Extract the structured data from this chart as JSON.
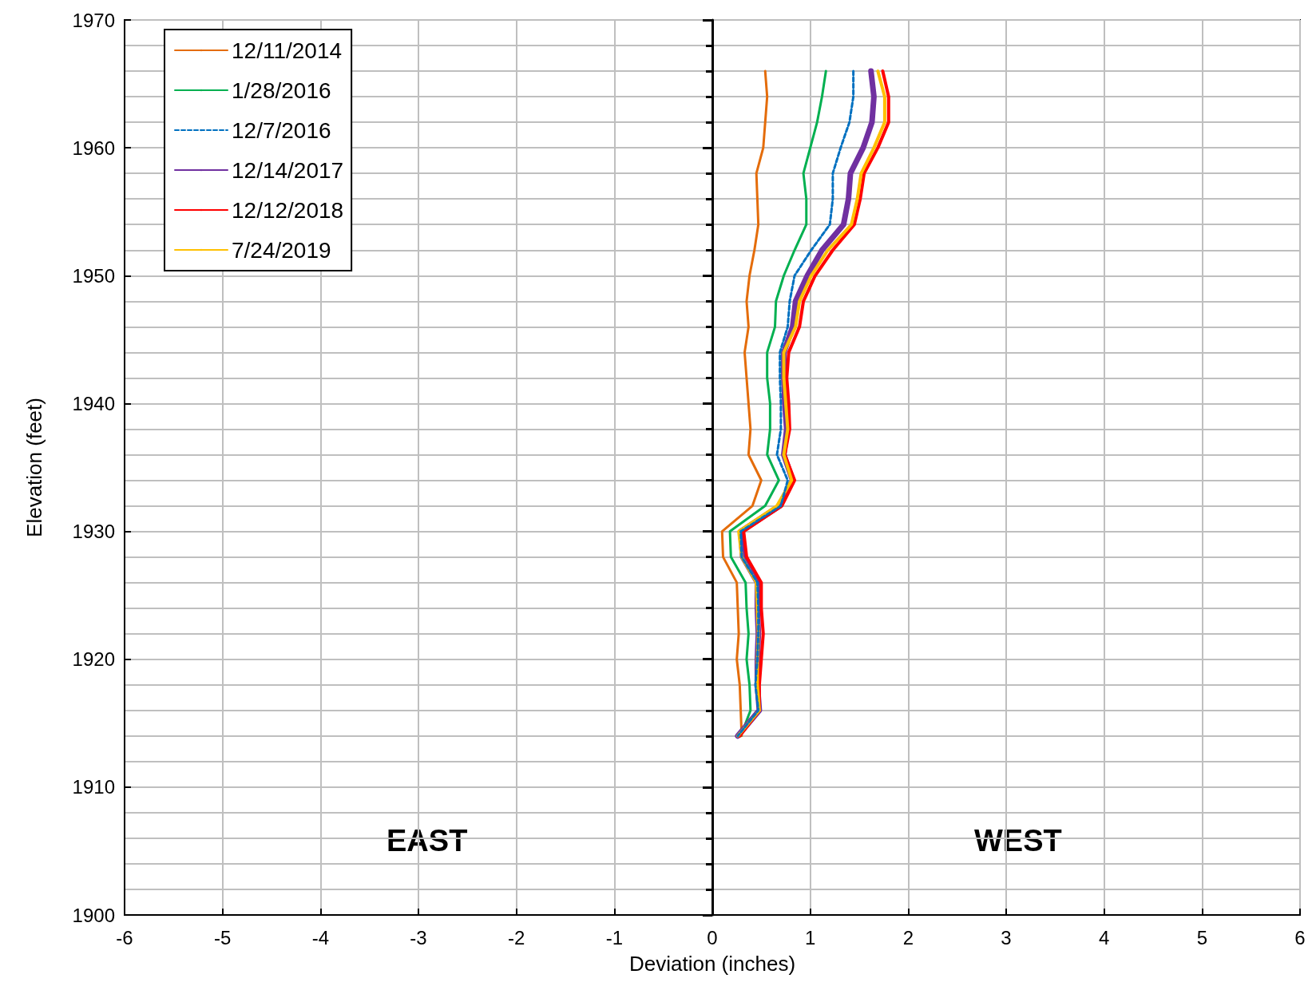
{
  "chart_data": {
    "type": "line",
    "xlabel": "Deviation (inches)",
    "ylabel": "Elevation (feet)",
    "xlim": [
      -6,
      6
    ],
    "xticks": [
      -6,
      -5,
      -4,
      -3,
      -2,
      -1,
      0,
      1,
      2,
      3,
      4,
      5,
      6
    ],
    "ylim": [
      1900,
      1970
    ],
    "yticks": [
      1900,
      1910,
      1920,
      1930,
      1940,
      1950,
      1960,
      1970
    ],
    "grid": true,
    "legend": "top left",
    "marker": "none",
    "annotations": [
      "EAST",
      "WEST"
    ],
    "series": [
      {
        "name": "12/11/2014",
        "color": "#e46c0a",
        "line_style": "solid",
        "x": [
          0.54,
          0.56,
          0.54,
          0.52,
          0.45,
          0.46,
          0.47,
          0.43,
          0.38,
          0.35,
          0.37,
          0.33,
          0.35,
          0.37,
          0.39,
          0.37,
          0.5,
          0.41,
          0.1,
          0.11,
          0.25,
          0.26,
          0.27,
          0.25,
          0.28,
          0.29,
          0.3
        ],
        "values": [
          1966,
          1964,
          1962,
          1960,
          1958,
          1956,
          1954,
          1952,
          1950,
          1948,
          1946,
          1944,
          1942,
          1940,
          1938,
          1936,
          1934,
          1932,
          1930,
          1928,
          1926,
          1924,
          1922,
          1920,
          1918,
          1916,
          1914
        ]
      },
      {
        "name": "1/28/2016",
        "color": "#00b050",
        "line_style": "solid",
        "x": [
          1.16,
          1.12,
          1.07,
          1.0,
          0.93,
          0.96,
          0.96,
          0.84,
          0.73,
          0.65,
          0.64,
          0.56,
          0.56,
          0.59,
          0.59,
          0.56,
          0.68,
          0.54,
          0.18,
          0.19,
          0.34,
          0.35,
          0.37,
          0.35,
          0.38,
          0.39,
          0.29
        ],
        "values": [
          1966,
          1964,
          1962,
          1960,
          1958,
          1956,
          1954,
          1952,
          1950,
          1948,
          1946,
          1944,
          1942,
          1940,
          1938,
          1936,
          1934,
          1932,
          1930,
          1928,
          1926,
          1924,
          1922,
          1920,
          1918,
          1916,
          1914
        ]
      },
      {
        "name": "12/7/2016",
        "color": "#0070c0",
        "line_style": "dashed",
        "x": [
          1.44,
          1.44,
          1.4,
          1.31,
          1.23,
          1.23,
          1.2,
          1.01,
          0.84,
          0.79,
          0.77,
          0.69,
          0.69,
          0.7,
          0.7,
          0.66,
          0.77,
          0.7,
          0.29,
          0.3,
          0.46,
          0.47,
          0.47,
          0.46,
          0.44,
          0.47,
          0.26
        ],
        "values": [
          1966,
          1964,
          1962,
          1960,
          1958,
          1956,
          1954,
          1952,
          1950,
          1948,
          1946,
          1944,
          1942,
          1940,
          1938,
          1936,
          1934,
          1932,
          1930,
          1928,
          1926,
          1924,
          1922,
          1920,
          1918,
          1916,
          1914
        ]
      },
      {
        "name": "12/14/2017",
        "color": "#7030a0",
        "line_style": "solid",
        "x": [
          1.62,
          1.65,
          1.63,
          1.54,
          1.41,
          1.39,
          1.34,
          1.12,
          0.97,
          0.85,
          0.82,
          0.73,
          0.73,
          0.74,
          0.76,
          0.73,
          0.82,
          0.69,
          0.29,
          0.31,
          0.46,
          0.46,
          0.47,
          0.46,
          0.46,
          0.48,
          0.26
        ],
        "values": [
          1966,
          1964,
          1962,
          1960,
          1958,
          1956,
          1954,
          1952,
          1950,
          1948,
          1946,
          1944,
          1942,
          1940,
          1938,
          1936,
          1934,
          1932,
          1930,
          1928,
          1926,
          1924,
          1922,
          1920,
          1918,
          1916,
          1914
        ]
      },
      {
        "name": "12/12/2018",
        "color": "#ff0000",
        "line_style": "solid",
        "x": [
          1.74,
          1.8,
          1.8,
          1.69,
          1.55,
          1.51,
          1.45,
          1.23,
          1.05,
          0.93,
          0.89,
          0.78,
          0.76,
          0.78,
          0.79,
          0.74,
          0.84,
          0.71,
          0.32,
          0.35,
          0.5,
          0.5,
          0.52,
          0.5,
          0.48,
          0.48,
          0.28
        ],
        "values": [
          1966,
          1964,
          1962,
          1960,
          1958,
          1956,
          1954,
          1952,
          1950,
          1948,
          1946,
          1944,
          1942,
          1940,
          1938,
          1936,
          1934,
          1932,
          1930,
          1928,
          1926,
          1924,
          1922,
          1920,
          1918,
          1916,
          1914
        ]
      },
      {
        "name": "7/24/2019",
        "color": "#ffc000",
        "line_style": "solid",
        "x": [
          1.69,
          1.76,
          1.76,
          1.65,
          1.52,
          1.48,
          1.42,
          1.18,
          1.01,
          0.89,
          0.85,
          0.73,
          0.73,
          0.75,
          0.77,
          0.73,
          0.81,
          0.66,
          0.27,
          0.3,
          0.45,
          0.46,
          0.47,
          0.46,
          0.46,
          0.48,
          0.26
        ],
        "values": [
          1966,
          1964,
          1962,
          1960,
          1958,
          1956,
          1954,
          1952,
          1950,
          1948,
          1946,
          1944,
          1942,
          1940,
          1938,
          1936,
          1934,
          1932,
          1930,
          1928,
          1926,
          1924,
          1922,
          1920,
          1918,
          1916,
          1914
        ]
      }
    ]
  }
}
